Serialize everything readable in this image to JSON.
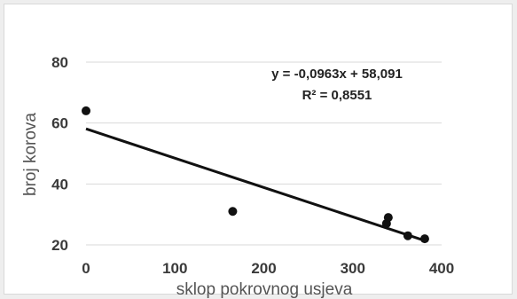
{
  "chart_data": {
    "type": "scatter",
    "xlabel": "sklop pokrovnog usjeva",
    "ylabel": "broj korova",
    "xlim": [
      0,
      400
    ],
    "ylim": [
      20,
      80
    ],
    "xticks": [
      0,
      100,
      200,
      300,
      400
    ],
    "yticks": [
      20,
      40,
      60,
      80
    ],
    "grid": "horizontal",
    "series": [
      {
        "x": [
          0,
          165,
          338,
          340,
          362,
          381
        ],
        "y": [
          64,
          31,
          27,
          29,
          23,
          22
        ],
        "color": "#111111"
      }
    ],
    "trendline": {
      "slope": -0.0963,
      "intercept": 58.091,
      "color": "#111111",
      "equation_label": "y = -0,0963x + 58,091",
      "r2_label": "R² = 0,8551"
    }
  }
}
